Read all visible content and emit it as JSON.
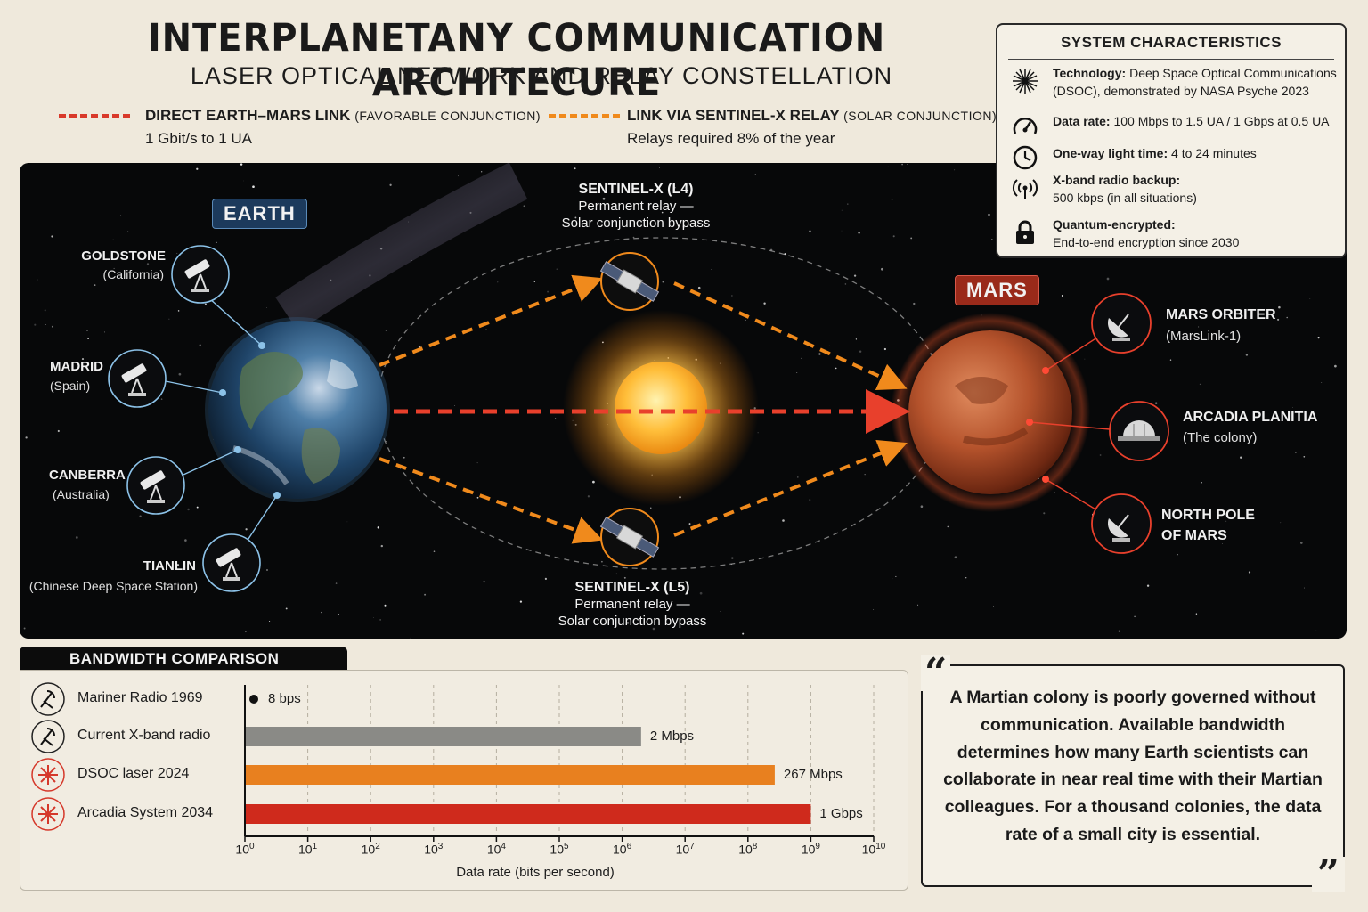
{
  "header": {
    "title": "INTERPLANETANY COMMUNICATION ARCHITECURE",
    "subtitle": "LASER OPTICAL NETWORK AND RELAY CONSTELLATION"
  },
  "legend": {
    "direct": {
      "title": "DIRECT EARTH–MARS LINK",
      "qualifier": "(FAVORABLE CONJUNCTION)",
      "detail": "1 Gbit/s to 1 UA",
      "color": "#d93a2b"
    },
    "relay": {
      "title": "LINK VIA SENTINEL-X RELAY",
      "qualifier": "(SOLAR CONJUNCTION)",
      "detail": "Relays required 8% of the year",
      "color": "#f08a1c"
    }
  },
  "system": {
    "title": "SYSTEM CHARACTERISTICS",
    "items": [
      {
        "icon": "starburst-icon",
        "label": "Technology:",
        "text": "Deep Space Optical Communications (DSOC), demonstrated by NASA Psyche 2023"
      },
      {
        "icon": "gauge-icon",
        "label": "Data rate:",
        "text": "100 Mbps to 1.5 UA / 1 Gbps at 0.5 UA"
      },
      {
        "icon": "clock-icon",
        "label": "One-way light time:",
        "text": "4 to 24 minutes"
      },
      {
        "icon": "radio-waves-icon",
        "label": "X-band radio backup:",
        "text": "500 kbps (in all situations)"
      },
      {
        "icon": "lock-icon",
        "label": "Quantum-encrypted:",
        "text": "End-to-end encryption since 2030"
      }
    ]
  },
  "space": {
    "earth_label": "EARTH",
    "mars_label": "MARS",
    "earth_stations": [
      {
        "name": "GOLDSTONE",
        "location": "(California)"
      },
      {
        "name": "MADRID",
        "location": "(Spain)"
      },
      {
        "name": "CANBERRA",
        "location": "(Australia)"
      },
      {
        "name": "TIANLIN",
        "location": "(Chinese Deep Space Station)"
      }
    ],
    "mars_stations": [
      {
        "name": "MARS ORBITER",
        "location": "(MarsLink-1)"
      },
      {
        "name": "ARCADIA PLANITIA",
        "location": "(The colony)"
      },
      {
        "name": "NORTH POLE",
        "location": "OF MARS"
      }
    ],
    "relays": [
      {
        "name": "SENTINEL-X (L4)",
        "line1": "Permanent relay —",
        "line2": "Solar conjunction bypass"
      },
      {
        "name": "SENTINEL-X (L5)",
        "line1": "Permanent relay —",
        "line2": "Solar conjunction bypass"
      }
    ]
  },
  "bandwidth": {
    "title": "BANDWIDTH COMPARISON",
    "xlabel": "Data rate (bits per second)"
  },
  "chart_data": {
    "type": "bar",
    "orientation": "horizontal",
    "title": "BANDWIDTH COMPARISON",
    "xlabel": "Data rate (bits per second)",
    "xscale": "log",
    "xlim": [
      1,
      10000000000
    ],
    "ticks": [
      "0",
      "1",
      "2",
      "3",
      "4",
      "5",
      "6",
      "7",
      "8",
      "9",
      "10"
    ],
    "grid": true,
    "categories": [
      "Mariner Radio 1969",
      "Current X-band radio",
      "DSOC laser 2024",
      "Arcadia System 2034"
    ],
    "values": [
      8,
      2000000,
      267000000,
      1000000000
    ],
    "labels": [
      "8 bps",
      "2 Mbps",
      "267 Mbps",
      "1 Gbps"
    ],
    "colors": [
      "#111111",
      "#8a8a86",
      "#e8801f",
      "#cf2a1c"
    ],
    "icons": [
      "antenna-icon",
      "satellite-dish-icon",
      "laser-burst-icon",
      "laser-burst-icon"
    ]
  },
  "quote": {
    "text": "A Martian colony is  poorly governed without communication. Available bandwidth determines how many Earth scientists can collaborate in near real time with their Martian colleagues. For a thousand colonies, the data rate of a small city is essential.",
    "open_mark": "“",
    "close_mark": "”"
  }
}
